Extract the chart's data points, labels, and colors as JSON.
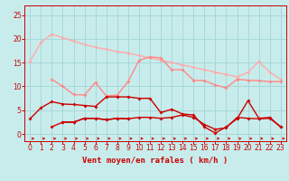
{
  "background_color": "#c8ecec",
  "grid_color": "#a8d8d8",
  "tick_color": "#cc0000",
  "xlabel": "Vent moyen/en rafales ( km/h )",
  "xlabel_color": "#cc0000",
  "ylim": [
    -1.5,
    27
  ],
  "xlim": [
    -0.5,
    23.5
  ],
  "yticks": [
    0,
    5,
    10,
    15,
    20,
    25
  ],
  "xticks": [
    0,
    1,
    2,
    3,
    4,
    5,
    6,
    7,
    8,
    9,
    10,
    11,
    12,
    13,
    14,
    15,
    16,
    17,
    18,
    19,
    20,
    21,
    22,
    23
  ],
  "series": [
    {
      "color": "#ffaaaa",
      "lw": 1.0,
      "markersize": 2.0,
      "x": [
        0,
        1,
        2,
        3,
        4,
        5,
        6,
        7,
        8,
        9,
        10,
        11,
        12,
        13,
        14,
        15,
        16,
        17,
        18,
        19,
        20,
        21,
        22,
        23
      ],
      "y": [
        15.3,
        19.2,
        21.0,
        20.2,
        19.5,
        18.8,
        18.2,
        17.8,
        17.3,
        17.0,
        16.5,
        16.0,
        15.5,
        15.0,
        14.5,
        14.0,
        13.5,
        13.0,
        12.5,
        12.0,
        13.0,
        15.2,
        13.0,
        11.5
      ]
    },
    {
      "color": "#ff8888",
      "lw": 1.0,
      "markersize": 2.0,
      "x": [
        0,
        1,
        2,
        3,
        4,
        5,
        6,
        7,
        8,
        9,
        10,
        11,
        12,
        13,
        14,
        15,
        16,
        17,
        18,
        19,
        20,
        21,
        22,
        23
      ],
      "y": [
        null,
        null,
        11.5,
        10.0,
        8.3,
        8.2,
        10.8,
        8.0,
        8.2,
        11.0,
        15.5,
        16.2,
        16.0,
        13.5,
        13.5,
        11.3,
        11.2,
        10.3,
        9.7,
        11.5,
        11.3,
        11.2,
        11.0,
        11.0
      ]
    },
    {
      "color": "#cc0000",
      "lw": 1.0,
      "markersize": 2.0,
      "x": [
        0,
        1,
        2,
        3,
        4,
        5,
        6,
        7,
        8,
        9,
        10,
        11,
        12,
        13,
        14,
        15,
        16,
        17,
        18,
        19,
        20,
        21,
        22,
        23
      ],
      "y": [
        3.2,
        5.5,
        6.8,
        6.3,
        6.2,
        6.0,
        5.8,
        7.8,
        7.8,
        7.8,
        7.5,
        7.5,
        4.5,
        5.2,
        4.2,
        4.0,
        1.5,
        0.2,
        1.5,
        3.2,
        7.0,
        3.3,
        3.5,
        1.5
      ]
    },
    {
      "color": "#cc0000",
      "lw": 1.0,
      "markersize": 2.0,
      "x": [
        0,
        1,
        2,
        3,
        4,
        5,
        6,
        7,
        8,
        9,
        10,
        11,
        12,
        13,
        14,
        15,
        16,
        17,
        18,
        19,
        20,
        21,
        22,
        23
      ],
      "y": [
        null,
        null,
        1.5,
        2.5,
        2.5,
        3.3,
        3.3,
        3.0,
        3.3,
        3.2,
        3.5,
        3.5,
        3.3,
        3.5,
        4.0,
        3.5,
        2.0,
        1.0,
        1.3,
        3.5,
        3.3,
        3.2,
        3.3,
        1.5
      ]
    },
    {
      "color": "#cc0000",
      "lw": 1.0,
      "markersize": 2.0,
      "x": [
        0,
        1,
        2,
        3,
        4,
        5,
        6,
        7,
        8,
        9,
        10,
        11,
        12,
        13,
        14,
        15,
        16,
        17,
        18,
        19,
        20,
        21,
        22,
        23
      ],
      "y": [
        null,
        null,
        null,
        2.5,
        2.5,
        3.3,
        3.3,
        3.0,
        3.3,
        3.2,
        null,
        null,
        null,
        null,
        null,
        null,
        null,
        null,
        null,
        null,
        null,
        null,
        null,
        null
      ]
    }
  ],
  "fontsize_xlabel": 6.5,
  "fontsize_ticks": 5.5
}
